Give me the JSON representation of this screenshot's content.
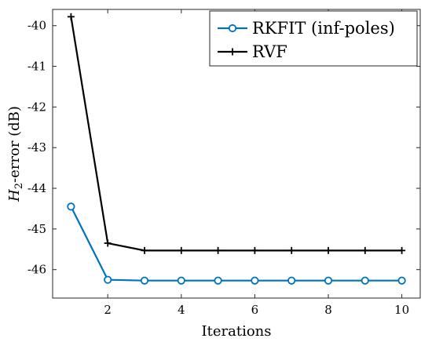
{
  "chart_data": {
    "type": "line",
    "xlabel": "Iterations",
    "ylabel_prefix": "H",
    "ylabel_subscript": "2",
    "ylabel_suffix": "-error (dB)",
    "xlim": [
      0.5,
      10.5
    ],
    "ylim": [
      -46.7,
      -39.6
    ],
    "x_ticks": [
      2,
      4,
      6,
      8,
      10
    ],
    "y_ticks": [
      -40,
      -41,
      -42,
      -43,
      -44,
      -45,
      -46
    ],
    "grid": false,
    "legend_position": "top-right",
    "series": [
      {
        "name": "RKFIT (inf-poles)",
        "color": "#0072BD",
        "marker": "circle",
        "x": [
          1,
          2,
          3,
          4,
          5,
          6,
          7,
          8,
          9,
          10
        ],
        "y": [
          -44.45,
          -46.25,
          -46.27,
          -46.27,
          -46.27,
          -46.27,
          -46.27,
          -46.27,
          -46.27,
          -46.27
        ]
      },
      {
        "name": "RVF",
        "color": "#000000",
        "marker": "plus",
        "x": [
          1,
          2,
          3,
          4,
          5,
          6,
          7,
          8,
          9,
          10
        ],
        "y": [
          -39.78,
          -45.35,
          -45.53,
          -45.53,
          -45.53,
          -45.53,
          -45.53,
          -45.53,
          -45.53,
          -45.53
        ]
      }
    ]
  }
}
